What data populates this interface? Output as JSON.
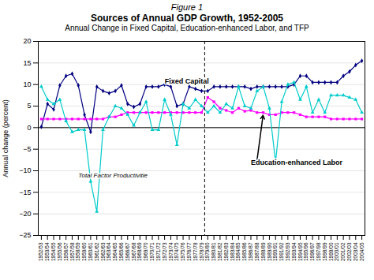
{
  "chart_data": {
    "type": "line",
    "figure_label": "Figure 1",
    "title": "Sources of Annual GDP Growth, 1952-2005",
    "subtitle": "Annual Change in Fixed Capital, Education-enhanced Labor, and TFP",
    "ylabel": "Annual change (percent)",
    "categories": [
      "1952/53",
      "1953/54",
      "1954/55",
      "1955/56",
      "1956/57",
      "1957/58",
      "1958/59",
      "1959/60",
      "1960/61",
      "1961/62",
      "1962/63",
      "1963/64",
      "1964/65",
      "1965/66",
      "1966/67",
      "1967/68",
      "1968/69",
      "1969/70",
      "1970/71",
      "1971/72",
      "1972/73",
      "1973/74",
      "1974/75",
      "1975/76",
      "1976/77",
      "1977/78",
      "1978/79",
      "1979/80",
      "1980/81",
      "1981/82",
      "1982/83",
      "1983/84",
      "1984/85",
      "1985/86",
      "1986/87",
      "1987/88",
      "1988/89",
      "1989/90",
      "1990/91",
      "1991/92",
      "1992/93",
      "1993/94",
      "1994/95",
      "1995/96",
      "1996/97",
      "1997/98",
      "1998/99",
      "1999/00",
      "2000/01",
      "2001/02",
      "2002/03",
      "2003/04",
      "2004/05"
    ],
    "series": [
      {
        "color": "#000080",
        "marker": "diamond",
        "values": [
          0.2,
          5.5,
          4.2,
          9.8,
          12.0,
          12.5,
          9.8,
          3.0,
          -1.0,
          9.5,
          8.5,
          8.0,
          8.5,
          9.8,
          5.5,
          4.8,
          5.5,
          9.5,
          9.5,
          9.5,
          10.0,
          9.5,
          5.0,
          5.5,
          9.5,
          9.0,
          8.5,
          8.5,
          9.5,
          9.5,
          9.5,
          9.5,
          9.5,
          9.5,
          9.0,
          9.5,
          9.5,
          9.5,
          9.5,
          9.5,
          9.5,
          10.0,
          12.0,
          12.0,
          10.5,
          10.5,
          10.5,
          10.5,
          10.5,
          12.0,
          13.0,
          14.5,
          15.5
        ]
      },
      {
        "color": "#FF00FF",
        "marker": "square",
        "values": [
          2.0,
          2.0,
          2.0,
          2.0,
          2.0,
          2.0,
          2.0,
          2.0,
          2.0,
          2.0,
          2.0,
          2.5,
          2.5,
          3.0,
          3.5,
          3.5,
          3.5,
          3.5,
          3.5,
          3.5,
          3.5,
          3.5,
          3.5,
          3.5,
          3.5,
          3.5,
          3.5,
          7.0,
          6.0,
          4.5,
          4.0,
          3.5,
          4.5,
          3.8,
          4.0,
          3.5,
          3.5,
          3.0,
          3.0,
          3.5,
          3.5,
          3.5,
          3.0,
          2.5,
          2.5,
          2.5,
          2.5,
          2.0,
          2.0,
          2.0,
          2.0,
          2.0,
          2.0
        ]
      },
      {
        "color": "#00CCCC",
        "marker": "triangle",
        "values": [
          9.5,
          6.5,
          5.5,
          6.5,
          1.5,
          -1.0,
          -0.5,
          -0.5,
          -12.5,
          -19.5,
          -0.5,
          2.5,
          5.0,
          4.5,
          3.0,
          0.5,
          3.5,
          6.0,
          -0.5,
          -0.5,
          6.5,
          3.0,
          -4.0,
          5.5,
          4.5,
          6.5,
          5.0,
          3.5,
          5.0,
          3.5,
          5.5,
          4.5,
          9.5,
          5.0,
          4.5,
          8.5,
          9.5,
          4.5,
          -8.0,
          6.0,
          10.0,
          10.5,
          6.5,
          9.5,
          3.5,
          6.5,
          3.5,
          7.5,
          7.5,
          7.5,
          7.0,
          6.5,
          3.5
        ]
      }
    ],
    "ylim": [
      -25,
      20
    ],
    "yticks": [
      -25,
      -20,
      -15,
      -10,
      -5,
      0,
      5,
      10,
      15,
      20
    ],
    "grid": true,
    "hline": {
      "y": 0
    },
    "vline": {
      "between": [
        "1978/79",
        "1979/80"
      ],
      "line_style": "dashed"
    },
    "annotations": [
      {
        "text": "Fixed Capital",
        "x": "1972/73",
        "y": 10.2
      },
      {
        "text": "Education-enhanced Labor",
        "x": "1986/87",
        "y": -7.5,
        "arrow_to": {
          "x": "1988/89",
          "y": 3.2
        }
      },
      {
        "text": "Total Factor Productivitie",
        "x": "1958/59",
        "y": -11.5
      }
    ]
  }
}
